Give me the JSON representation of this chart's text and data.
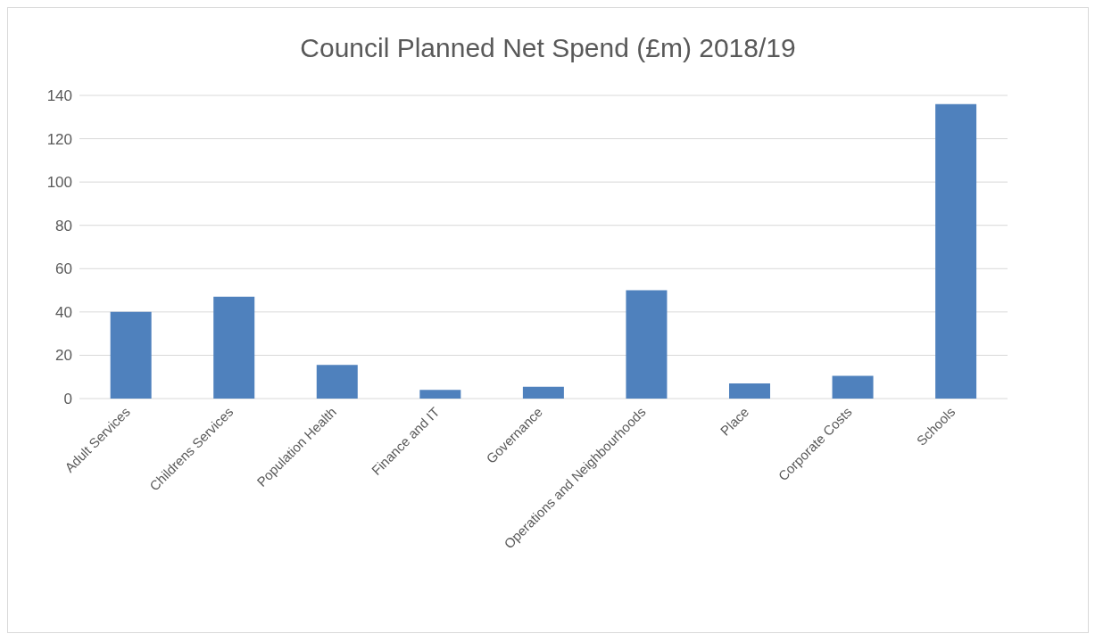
{
  "chart_data": {
    "type": "bar",
    "title": "Council Planned Net Spend (£m) 2018/19",
    "categories": [
      "Adult Services",
      "Childrens Services",
      "Population Health",
      "Finance and IT",
      "Governance",
      "Operations and Neighbourhoods",
      "Place",
      "Corporate Costs",
      "Schools"
    ],
    "values": [
      40,
      47,
      15.5,
      4,
      5.5,
      50,
      7,
      10.5,
      136
    ],
    "color": "#4f81bd",
    "ylim": [
      0,
      140
    ],
    "yticks": [
      0,
      20,
      40,
      60,
      80,
      100,
      120,
      140
    ],
    "grid": "y"
  }
}
